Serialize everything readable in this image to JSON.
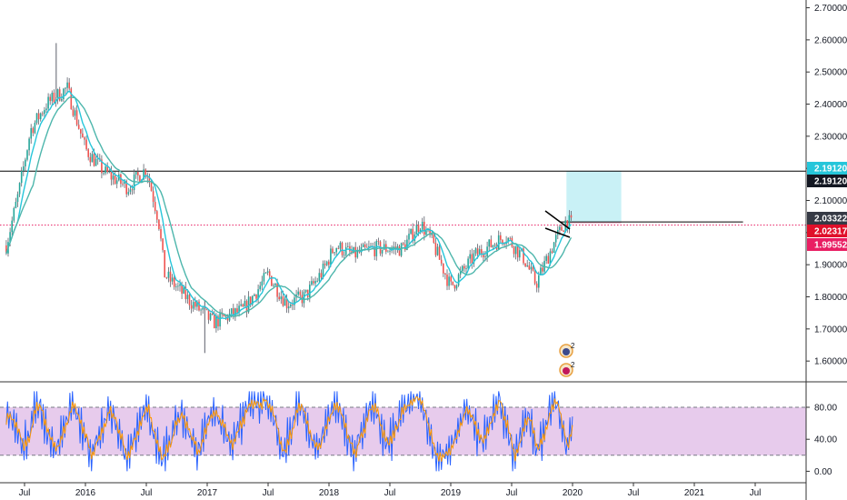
{
  "chart_data": [
    {
      "type": "candlestick",
      "title": "",
      "xlabel": "",
      "ylabel": "",
      "ylim": [
        1.545,
        2.72
      ],
      "x_ticks": [
        "Jul",
        "2016",
        "Jul",
        "2017",
        "Jul",
        "2018",
        "Jul",
        "2019",
        "Jul",
        "2020",
        "Jul",
        "2021",
        "Jul"
      ],
      "y_ticks": [
        "2.70000",
        "2.60000",
        "2.50000",
        "2.40000",
        "2.30000",
        "2.20000",
        "2.10000",
        "2.00000",
        "1.90000",
        "1.80000",
        "1.70000",
        "1.60000"
      ],
      "price_path": [
        [
          2015.35,
          1.96
        ],
        [
          2015.45,
          2.12
        ],
        [
          2015.55,
          2.32
        ],
        [
          2015.68,
          2.4
        ],
        [
          2015.85,
          2.45
        ],
        [
          2016.0,
          2.26
        ],
        [
          2016.15,
          2.19
        ],
        [
          2016.35,
          2.14
        ],
        [
          2016.5,
          2.2
        ],
        [
          2016.6,
          2.04
        ],
        [
          2016.65,
          1.87
        ],
        [
          2016.85,
          1.79
        ],
        [
          2017.05,
          1.72
        ],
        [
          2017.3,
          1.76
        ],
        [
          2017.5,
          1.87
        ],
        [
          2017.65,
          1.78
        ],
        [
          2017.8,
          1.8
        ],
        [
          2017.95,
          1.88
        ],
        [
          2018.05,
          1.96
        ],
        [
          2018.2,
          1.93
        ],
        [
          2018.35,
          1.95
        ],
        [
          2018.6,
          1.95
        ],
        [
          2018.75,
          2.03
        ],
        [
          2018.85,
          1.97
        ],
        [
          2019.0,
          1.83
        ],
        [
          2019.2,
          1.93
        ],
        [
          2019.45,
          1.99
        ],
        [
          2019.6,
          1.92
        ],
        [
          2019.7,
          1.84
        ],
        [
          2019.85,
          1.97
        ],
        [
          2019.95,
          2.04
        ],
        [
          2020.0,
          2.02
        ]
      ],
      "last_close": 2.03,
      "moving_averages": [
        {
          "name": "",
          "color": "#26c6da",
          "lag_years": 0.1
        },
        {
          "name": "",
          "color": "#4db6ac",
          "lag_years": 0.22
        }
      ],
      "horizontal_lines": [
        {
          "value": 2.1912,
          "color": "#000000",
          "style": "solid"
        },
        {
          "value": 2.02317,
          "color": "#e91e63",
          "style": "dotted"
        },
        {
          "value": 2.03322,
          "color": "#000000",
          "style": "solid",
          "x_from": 2019.9,
          "x_to": 2021.4
        }
      ],
      "trade_box": {
        "entry": 2.03322,
        "target": 2.1912,
        "stop": 2.02317,
        "x_from": 2019.95,
        "x_to": 2020.4
      },
      "price_labels": [
        {
          "text": "2.19120",
          "value": 2.1912,
          "color": "#26c6da"
        },
        {
          "text": "2.19120",
          "value": 2.1912,
          "color": "#131722"
        },
        {
          "text": "2.03322",
          "value": 2.03322,
          "color": "#363a45"
        },
        {
          "text": "2.02317",
          "value": 2.02317,
          "color": "#e0102a"
        },
        {
          "text": "1.99552",
          "value": 1.99552,
          "color": "#e91e63"
        }
      ]
    },
    {
      "type": "line",
      "title": "",
      "xlabel": "",
      "ylabel": "",
      "ylim": [
        -8,
        108
      ],
      "y_ticks": [
        "80.00",
        "40.00",
        "0.00"
      ],
      "band": [
        20,
        80
      ],
      "series": [
        {
          "name": "",
          "color": "#2962ff"
        },
        {
          "name": "",
          "color": "#ff9800"
        }
      ],
      "oscillator_path": [
        [
          2015.35,
          78
        ],
        [
          2015.5,
          30
        ],
        [
          2015.6,
          88
        ],
        [
          2015.75,
          25
        ],
        [
          2015.9,
          85
        ],
        [
          2016.05,
          20
        ],
        [
          2016.2,
          78
        ],
        [
          2016.35,
          15
        ],
        [
          2016.5,
          82
        ],
        [
          2016.62,
          12
        ],
        [
          2016.78,
          75
        ],
        [
          2016.92,
          22
        ],
        [
          2017.05,
          80
        ],
        [
          2017.2,
          28
        ],
        [
          2017.35,
          90
        ],
        [
          2017.5,
          88
        ],
        [
          2017.62,
          18
        ],
        [
          2017.75,
          85
        ],
        [
          2017.9,
          25
        ],
        [
          2018.05,
          92
        ],
        [
          2018.2,
          20
        ],
        [
          2018.35,
          86
        ],
        [
          2018.48,
          30
        ],
        [
          2018.62,
          80
        ],
        [
          2018.75,
          95
        ],
        [
          2018.88,
          15
        ],
        [
          2019.0,
          25
        ],
        [
          2019.12,
          80
        ],
        [
          2019.25,
          35
        ],
        [
          2019.4,
          88
        ],
        [
          2019.52,
          20
        ],
        [
          2019.62,
          70
        ],
        [
          2019.72,
          25
        ],
        [
          2019.85,
          95
        ],
        [
          2019.95,
          30
        ],
        [
          2020.0,
          58
        ]
      ]
    }
  ],
  "event_badges": {
    "badge_1": "2",
    "badge_2": "2"
  }
}
